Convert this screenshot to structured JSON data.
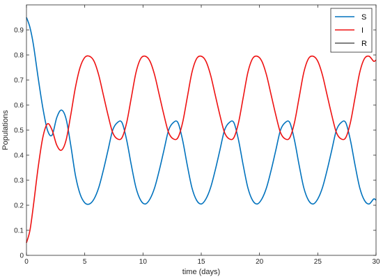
{
  "chart_data": {
    "type": "line",
    "xlabel": "time (days)",
    "ylabel": "Populations",
    "xlim": [
      0,
      30
    ],
    "ylim": [
      0,
      1
    ],
    "xticks": [
      0,
      5,
      10,
      15,
      20,
      25,
      30
    ],
    "xtick_labels": [
      "0",
      "5",
      "10",
      "15",
      "20",
      "25",
      "30"
    ],
    "yticks": [
      0,
      0.1,
      0.2,
      0.3,
      0.4,
      0.5,
      0.6,
      0.7,
      0.8,
      0.9
    ],
    "ytick_labels": [
      "0",
      "0.1",
      "0.2",
      "0.3",
      "0.4",
      "0.5",
      "0.6",
      "0.7",
      "0.8",
      "0.9"
    ],
    "grid": false,
    "legend_position": "top-right",
    "series": [
      {
        "name": "S",
        "color": "#0072BD",
        "x": [
          0,
          0.3,
          0.6,
          1.0,
          1.4,
          1.8,
          2.2,
          2.6,
          3.0,
          3.4,
          3.8,
          4.2,
          4.6,
          5.0,
          5.4,
          5.8,
          6.2,
          6.6,
          7.0,
          7.4,
          7.8,
          8.2,
          8.6,
          9.0,
          9.4,
          9.8,
          10.2,
          10.6,
          11.0,
          11.4,
          11.8,
          12.2,
          12.6,
          13.0,
          13.4,
          13.8,
          14.2,
          14.6,
          15.0,
          15.4,
          15.8,
          16.2,
          16.6,
          17.0,
          17.4,
          17.8,
          18.2,
          18.6,
          19.0,
          19.4,
          19.8,
          20.2,
          20.6,
          21.0,
          21.4,
          21.8,
          22.2,
          22.6,
          23.0,
          23.4,
          23.8,
          24.2,
          24.6,
          25.0,
          25.4,
          25.8,
          26.2,
          26.6,
          27.0,
          27.4,
          27.8,
          28.2,
          28.6,
          29.0,
          29.4,
          29.8,
          30.0
        ],
        "y": [
          0.95,
          0.91,
          0.84,
          0.71,
          0.59,
          0.5,
          0.48,
          0.55,
          0.58,
          0.545,
          0.44,
          0.32,
          0.245,
          0.21,
          0.205,
          0.225,
          0.27,
          0.34,
          0.42,
          0.5,
          0.53,
          0.53,
          0.46,
          0.36,
          0.27,
          0.22,
          0.205,
          0.225,
          0.27,
          0.34,
          0.42,
          0.5,
          0.53,
          0.53,
          0.46,
          0.36,
          0.27,
          0.22,
          0.205,
          0.225,
          0.27,
          0.34,
          0.42,
          0.5,
          0.53,
          0.53,
          0.46,
          0.36,
          0.27,
          0.22,
          0.205,
          0.225,
          0.27,
          0.34,
          0.42,
          0.5,
          0.53,
          0.53,
          0.46,
          0.36,
          0.27,
          0.22,
          0.205,
          0.225,
          0.27,
          0.34,
          0.42,
          0.5,
          0.53,
          0.53,
          0.46,
          0.36,
          0.27,
          0.22,
          0.205,
          0.225,
          0.22
        ]
      },
      {
        "name": "I",
        "color": "#EE1111",
        "x": [
          0,
          0.3,
          0.6,
          1.0,
          1.4,
          1.8,
          2.2,
          2.6,
          3.0,
          3.4,
          3.8,
          4.2,
          4.6,
          5.0,
          5.4,
          5.8,
          6.2,
          6.6,
          7.0,
          7.4,
          7.8,
          8.2,
          8.6,
          9.0,
          9.4,
          9.8,
          10.2,
          10.6,
          11.0,
          11.4,
          11.8,
          12.2,
          12.6,
          13.0,
          13.4,
          13.8,
          14.2,
          14.6,
          15.0,
          15.4,
          15.8,
          16.2,
          16.6,
          17.0,
          17.4,
          17.8,
          18.2,
          18.6,
          19.0,
          19.4,
          19.8,
          20.2,
          20.6,
          21.0,
          21.4,
          21.8,
          22.2,
          22.6,
          23.0,
          23.4,
          23.8,
          24.2,
          24.6,
          25.0,
          25.4,
          25.8,
          26.2,
          26.6,
          27.0,
          27.4,
          27.8,
          28.2,
          28.6,
          29.0,
          29.4,
          29.8,
          30.0
        ],
        "y": [
          0.05,
          0.1,
          0.2,
          0.35,
          0.47,
          0.525,
          0.5,
          0.44,
          0.42,
          0.46,
          0.56,
          0.67,
          0.75,
          0.79,
          0.795,
          0.775,
          0.72,
          0.64,
          0.56,
          0.49,
          0.465,
          0.47,
          0.53,
          0.63,
          0.73,
          0.785,
          0.795,
          0.775,
          0.72,
          0.64,
          0.56,
          0.49,
          0.465,
          0.47,
          0.53,
          0.63,
          0.73,
          0.785,
          0.795,
          0.775,
          0.72,
          0.64,
          0.56,
          0.49,
          0.465,
          0.47,
          0.53,
          0.63,
          0.73,
          0.785,
          0.795,
          0.775,
          0.72,
          0.64,
          0.56,
          0.49,
          0.465,
          0.47,
          0.53,
          0.63,
          0.73,
          0.785,
          0.795,
          0.775,
          0.72,
          0.64,
          0.56,
          0.49,
          0.465,
          0.47,
          0.53,
          0.63,
          0.73,
          0.785,
          0.795,
          0.775,
          0.78
        ]
      },
      {
        "name": "R",
        "color": "#000000",
        "x": [],
        "y": []
      }
    ]
  }
}
